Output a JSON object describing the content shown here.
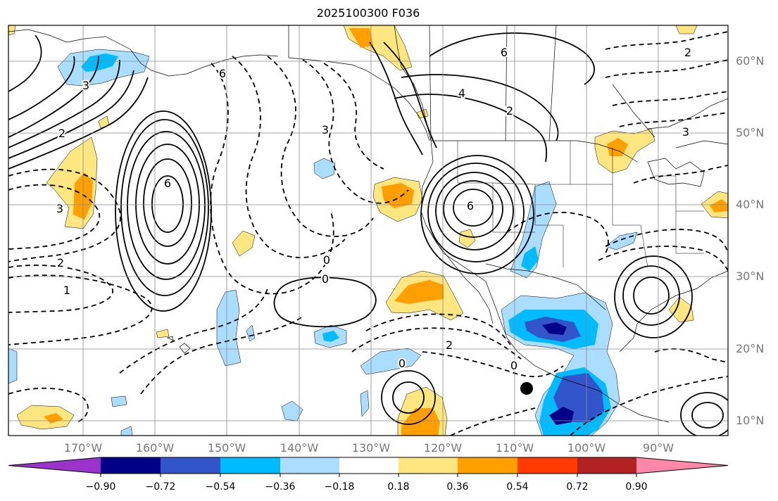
{
  "title": "2025100300 F036",
  "latitude_labels": [
    "60°N",
    "50°N",
    "40°N",
    "30°N",
    "20°N",
    "10°N"
  ],
  "longitude_labels": [
    "170°W",
    "160°W",
    "150°W",
    "140°W",
    "130°W",
    "120°W",
    "110°W",
    "100°W",
    "90°W"
  ],
  "contour_labels": [
    "6",
    "6",
    "4",
    "2",
    "3",
    "2",
    "1",
    "0",
    "0",
    "2",
    "0",
    "0",
    "6",
    "6",
    "2",
    "3",
    "3",
    "3",
    "2"
  ],
  "colorbar": {
    "tick_labels": [
      "−0.90",
      "−0.72",
      "−0.54",
      "−0.36",
      "−0.18",
      "0.18",
      "0.36",
      "0.54",
      "0.72",
      "0.90"
    ],
    "colors": [
      "#9933cc",
      "#000088",
      "#3355cc",
      "#00bbff",
      "#aaddff",
      "#ffffff",
      "#ffe680",
      "#ffa000",
      "#ff3a00",
      "#b22222",
      "#ff88aa"
    ]
  },
  "colors": {
    "frame": "#000000",
    "grid": "#888888",
    "axis_label": "#777777",
    "marker": "#000000"
  }
}
